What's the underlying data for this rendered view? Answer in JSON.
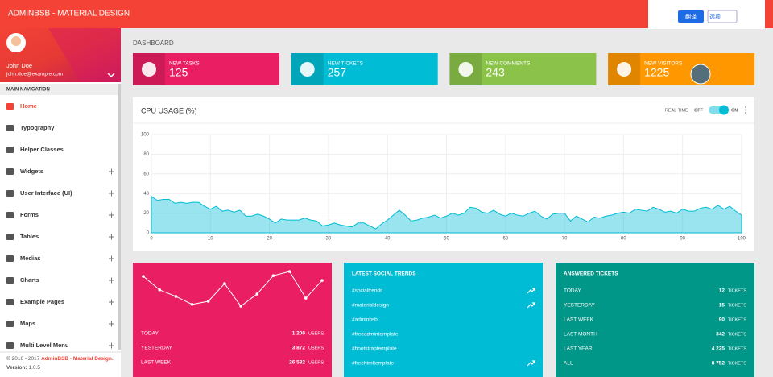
{
  "header": {
    "brand": "ADMINBSB - MATERIAL DESIGN"
  },
  "translate_popup": {
    "translate": "翻译",
    "options": "选项"
  },
  "user": {
    "name": "John Doe",
    "email": "john.doe@example.com"
  },
  "sidebar": {
    "section": "MAIN NAVIGATION",
    "items": [
      {
        "label": "Home",
        "active": true,
        "expandable": false
      },
      {
        "label": "Typography",
        "active": false,
        "expandable": false
      },
      {
        "label": "Helper Classes",
        "active": false,
        "expandable": false
      },
      {
        "label": "Widgets",
        "active": false,
        "expandable": true
      },
      {
        "label": "User Interface (UI)",
        "active": false,
        "expandable": true
      },
      {
        "label": "Forms",
        "active": false,
        "expandable": true
      },
      {
        "label": "Tables",
        "active": false,
        "expandable": true
      },
      {
        "label": "Medias",
        "active": false,
        "expandable": true
      },
      {
        "label": "Charts",
        "active": false,
        "expandable": true
      },
      {
        "label": "Example Pages",
        "active": false,
        "expandable": true
      },
      {
        "label": "Maps",
        "active": false,
        "expandable": true
      },
      {
        "label": "Multi Level Menu",
        "active": false,
        "expandable": true
      }
    ]
  },
  "footer": {
    "copyright": "© 2016 - 2017",
    "brand": "AdminBSB - Material Design.",
    "version_label": "Version:",
    "version": "1.0.5"
  },
  "page_title": "DASHBOARD",
  "info_boxes": [
    {
      "label": "NEW TASKS",
      "value": 125,
      "color": "#e91e63"
    },
    {
      "label": "NEW TICKETS",
      "value": 257,
      "color": "#00bcd4"
    },
    {
      "label": "NEW COMMENTS",
      "value": 243,
      "color": "#8bc34a"
    },
    {
      "label": "NEW VISITORS",
      "value": 1225,
      "color": "#ff9800"
    }
  ],
  "cpu_usage": {
    "type": "area",
    "title": "CPU USAGE (%)",
    "realtime_label": "REAL TIME",
    "off": "OFF",
    "on": "ON",
    "realtime": true,
    "x": [
      0,
      1,
      2,
      3,
      4,
      5,
      6,
      7,
      8,
      9,
      10,
      11,
      12,
      13,
      14,
      15,
      16,
      17,
      18,
      19,
      20,
      21,
      22,
      23,
      24,
      25,
      26,
      27,
      28,
      29,
      30,
      31,
      32,
      33,
      34,
      35,
      36,
      37,
      38,
      39,
      40,
      41,
      42,
      43,
      44,
      45,
      46,
      47,
      48,
      49,
      50,
      51,
      52,
      53,
      54,
      55,
      56,
      57,
      58,
      59,
      60,
      61,
      62,
      63,
      64,
      65,
      66,
      67,
      68,
      69,
      70,
      71,
      72,
      73,
      74,
      75,
      76,
      77,
      78,
      79,
      80,
      81,
      82,
      83,
      84,
      85,
      86,
      87,
      88,
      89,
      90,
      91,
      92,
      93,
      94,
      95,
      96,
      97,
      98,
      99,
      100
    ],
    "values": [
      37,
      33,
      34,
      34,
      30,
      31,
      30,
      31,
      31,
      27,
      24,
      27,
      22,
      23,
      21,
      23,
      17,
      17,
      19,
      17,
      14,
      10,
      14,
      13,
      13,
      13,
      15,
      13,
      12,
      7,
      8,
      10,
      8,
      7,
      6,
      10,
      10,
      7,
      4,
      9,
      13,
      18,
      23,
      18,
      12,
      13,
      15,
      16,
      18,
      15,
      17,
      20,
      18,
      20,
      26,
      25,
      21,
      20,
      23,
      19,
      17,
      20,
      18,
      17,
      20,
      22,
      17,
      14,
      19,
      20,
      20,
      12,
      17,
      14,
      11,
      16,
      15,
      17,
      18,
      20,
      21,
      20,
      24,
      23,
      22,
      26,
      24,
      21,
      22,
      20,
      24,
      22,
      22,
      25,
      26,
      24,
      28,
      24,
      27,
      22,
      18
    ],
    "xlim": [
      0,
      100
    ],
    "ylim": [
      0,
      100
    ],
    "xticks": [
      0,
      10,
      20,
      30,
      40,
      50,
      60,
      70,
      80,
      90,
      100
    ],
    "yticks": [
      0,
      20,
      40,
      60,
      80,
      100
    ],
    "color": "#00bcd4",
    "grid": true
  },
  "users_card": {
    "sparkline": {
      "type": "line",
      "values": [
        8.6,
        4.7,
        2.8,
        0.5,
        1.4,
        6.5,
        0,
        3.5,
        8.8,
        10,
        2.3,
        7.4
      ],
      "ylim": [
        0,
        10
      ],
      "color": "#ffffff"
    },
    "unit": "USERS",
    "rows": [
      {
        "label": "TODAY",
        "value": "1 200"
      },
      {
        "label": "YESTERDAY",
        "value": "3 872"
      },
      {
        "label": "LAST WEEK",
        "value": "26 582"
      }
    ]
  },
  "social_trends": {
    "title": "LATEST SOCIAL TRENDS",
    "items": [
      {
        "tag": "#socialtrends",
        "trending": true
      },
      {
        "tag": "#materialdesign",
        "trending": true
      },
      {
        "tag": "#adminbsb",
        "trending": false
      },
      {
        "tag": "#freeadmintemplate",
        "trending": false
      },
      {
        "tag": "#bootstraptemplate",
        "trending": false
      },
      {
        "tag": "#freehtmltemplate",
        "trending": true
      }
    ]
  },
  "answered_tickets": {
    "title": "ANSWERED TICKETS",
    "unit": "TICKETS",
    "rows": [
      {
        "label": "TODAY",
        "value": 12
      },
      {
        "label": "YESTERDAY",
        "value": 15
      },
      {
        "label": "LAST WEEK",
        "value": 90
      },
      {
        "label": "LAST MONTH",
        "value": 342
      },
      {
        "label": "LAST YEAR",
        "value": "4 225"
      },
      {
        "label": "ALL",
        "value": "8 752"
      }
    ]
  }
}
